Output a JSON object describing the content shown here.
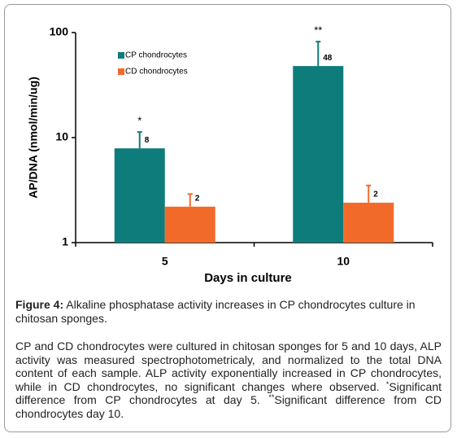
{
  "chart_data": {
    "type": "bar",
    "log_y": true,
    "y_label": "AP/DNA (nmol/min/ug)",
    "x_label": "Days in culture",
    "categories": [
      "5",
      "10"
    ],
    "ylim": [
      1,
      100
    ],
    "yticks": [
      1,
      10,
      100
    ],
    "legend": "top-left",
    "series": [
      {
        "name": "CP chondrocytes",
        "color": "#0e7c7b",
        "values": [
          7.9,
          48
        ],
        "value_labels": [
          "8",
          "48"
        ],
        "errors": [
          3.4,
          34
        ],
        "annotations": [
          "*",
          "**"
        ]
      },
      {
        "name": "CD chondrocytes",
        "color": "#f26a2a",
        "values": [
          2.2,
          2.4
        ],
        "value_labels": [
          "2",
          "2"
        ],
        "errors": [
          0.7,
          1.1
        ]
      }
    ]
  },
  "caption": {
    "label": "Figure 4:",
    "text": "Alkaline phosphatase activity increases in CP chondrocytes culture in chitosan sponges."
  },
  "note": {
    "parts": [
      "CP and CD chondrocytes were cultured in chitosan sponges for 5 and 10 days, ALP activity was measured spectrophotometricaly, and normalized to the total DNA content of each sample. ALP activity exponentially increased in CP chondrocytes, while in CD chondrocytes, no significant changes where observed. ",
      "*",
      "Significant difference from CP chondrocytes at day 5. ",
      "**",
      "Significant difference from CD chondrocytes day 10."
    ]
  }
}
